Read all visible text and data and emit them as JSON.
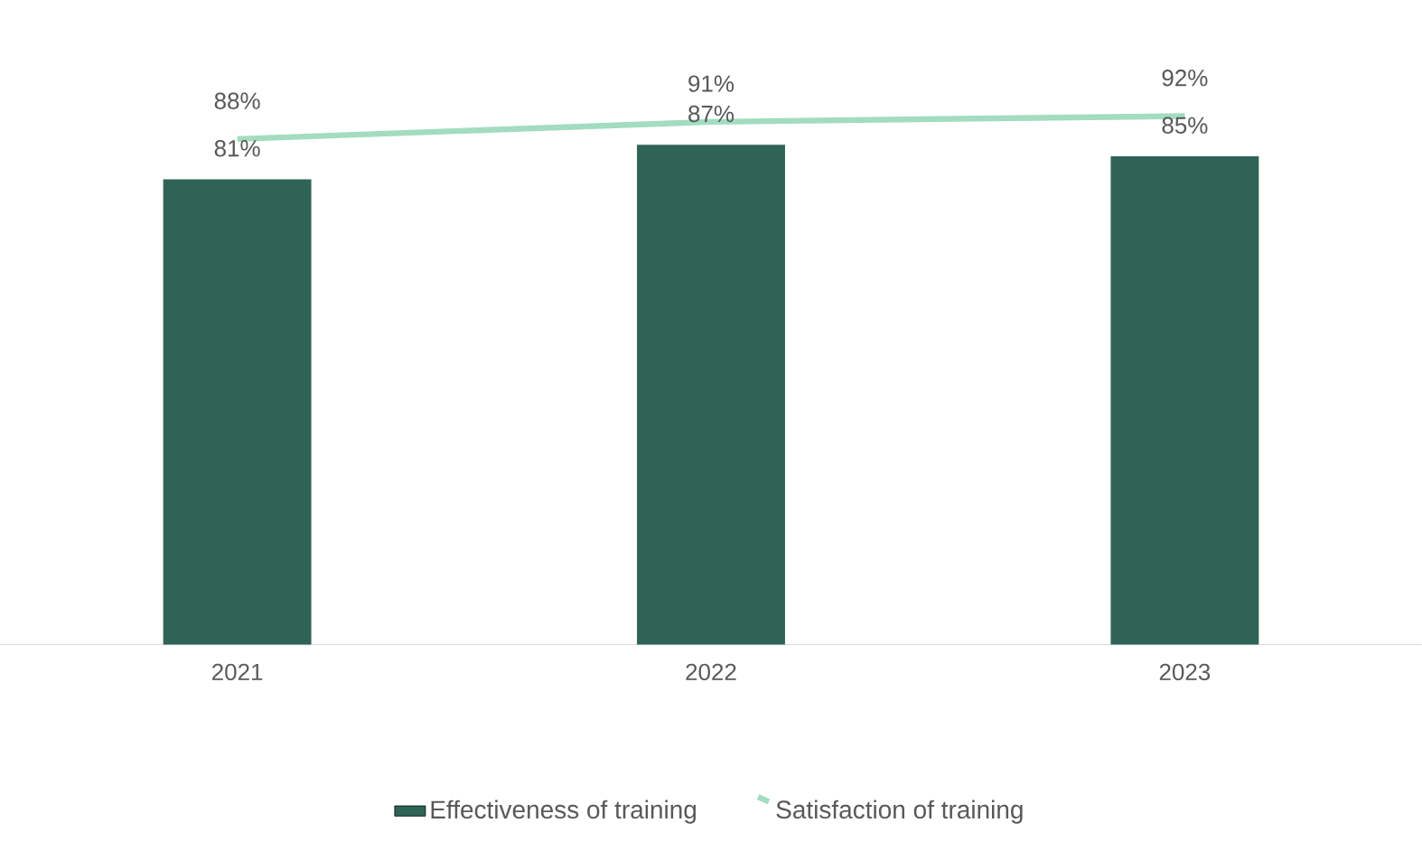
{
  "chart_data": {
    "type": "bar",
    "categories": [
      "2021",
      "2022",
      "2023"
    ],
    "series": [
      {
        "name": "Effectiveness of training",
        "type": "bar",
        "color": "#2e6356",
        "values": [
          81,
          87,
          85
        ],
        "value_labels": [
          "81%",
          "87%",
          "85%"
        ]
      },
      {
        "name": "Satisfaction of training",
        "type": "line",
        "color": "#a3dcc0",
        "values": [
          88,
          91,
          92
        ],
        "value_labels": [
          "88%",
          "91%",
          "92%"
        ]
      }
    ],
    "tick_labels": "x",
    "legend": "bottom"
  }
}
